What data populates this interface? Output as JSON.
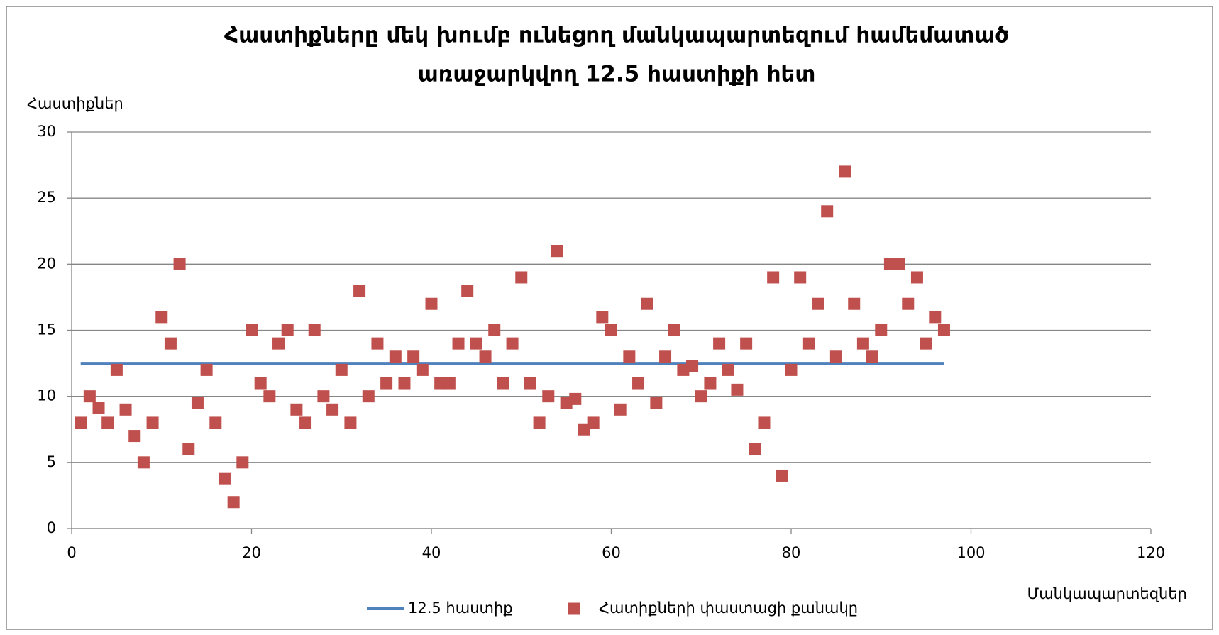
{
  "chart_data": {
    "type": "scatter",
    "title": [
      "Հաստիքները մեկ խումբ ունեցող մանկապարտեզում համեմատած",
      "առաջարկվող 12.5 հաստիքի հետ"
    ],
    "y_label": "Հաստիքներ",
    "x_label": "Մանկապարտեզներ",
    "xlim": [
      0,
      120
    ],
    "xticks": [
      0,
      20,
      40,
      60,
      80,
      100,
      120
    ],
    "ylim": [
      0,
      30
    ],
    "yticks": [
      0,
      5,
      10,
      15,
      20,
      25,
      30
    ],
    "grid": true,
    "legend": "bottom",
    "series": [
      {
        "name": "12.5 հաստիք",
        "type": "line",
        "color": "#4f81bd",
        "x": [
          1,
          97
        ],
        "values": [
          12.5,
          12.5
        ]
      },
      {
        "name": "Հատիքների փաստացի քանակը",
        "type": "scatter",
        "color": "#c0504d",
        "x": [
          1,
          2,
          3,
          4,
          5,
          6,
          7,
          8,
          9,
          10,
          11,
          12,
          13,
          14,
          15,
          16,
          17,
          18,
          19,
          20,
          21,
          22,
          23,
          24,
          25,
          26,
          27,
          28,
          29,
          30,
          31,
          32,
          33,
          34,
          35,
          36,
          37,
          38,
          39,
          40,
          41,
          42,
          43,
          44,
          45,
          46,
          47,
          48,
          49,
          50,
          51,
          52,
          53,
          54,
          55,
          56,
          57,
          58,
          59,
          60,
          61,
          62,
          63,
          64,
          65,
          66,
          67,
          68,
          69,
          70,
          71,
          72,
          73,
          74,
          75,
          76,
          77,
          78,
          79,
          80,
          81,
          82,
          83,
          84,
          85,
          86,
          87,
          88,
          89,
          90,
          91,
          92,
          93,
          94,
          95,
          96,
          97
        ],
        "values": [
          8,
          10,
          9.1,
          8,
          12,
          9,
          7,
          5,
          8,
          16,
          14,
          20,
          6,
          9.5,
          12,
          8,
          3.8,
          2,
          5,
          15,
          11,
          10,
          14,
          15,
          9,
          8,
          15,
          10,
          9,
          12,
          8,
          18,
          10,
          14,
          11,
          13,
          11,
          13,
          12,
          17,
          11,
          11,
          14,
          18,
          14,
          13,
          15,
          11,
          14,
          19,
          11,
          8,
          10,
          21,
          9.5,
          9.8,
          7.5,
          8,
          16,
          15,
          9,
          13,
          11,
          17,
          9.5,
          13,
          15,
          12,
          12.3,
          10,
          11,
          14,
          12,
          10.5,
          14,
          6,
          8,
          19,
          4,
          12,
          19,
          14,
          17,
          24,
          13,
          27,
          17,
          14,
          13,
          15,
          20,
          20,
          17,
          19,
          14,
          16,
          15
        ]
      }
    ]
  }
}
